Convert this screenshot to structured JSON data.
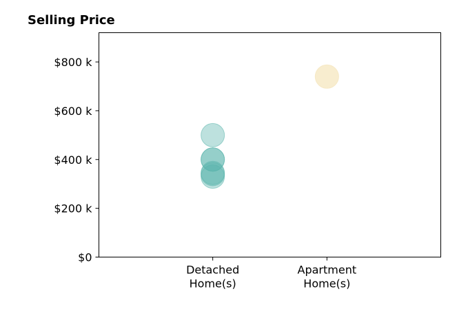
{
  "chart_data": {
    "type": "scatter",
    "title": "Selling Price",
    "xlabel": "",
    "ylabel": "",
    "categories": [
      [
        "Detached",
        "Home(s)"
      ],
      [
        "Apartment",
        "Home(s)"
      ]
    ],
    "ylim": [
      0,
      920000
    ],
    "yticks": [
      0,
      200000,
      400000,
      600000,
      800000
    ],
    "ytick_labels": [
      "$0",
      "$200 k",
      "$400 k",
      "$600 k",
      "$800 k"
    ],
    "grid": false,
    "legend": "none",
    "series": [
      {
        "category_index": 0,
        "color": "#5ab4ac",
        "opacity": 0.4,
        "points": [
          340000,
          330000,
          345000,
          400000,
          400000,
          500000
        ]
      },
      {
        "category_index": 1,
        "color": "#f6e8c3",
        "opacity": 0.8,
        "points": [
          740000
        ]
      }
    ]
  }
}
